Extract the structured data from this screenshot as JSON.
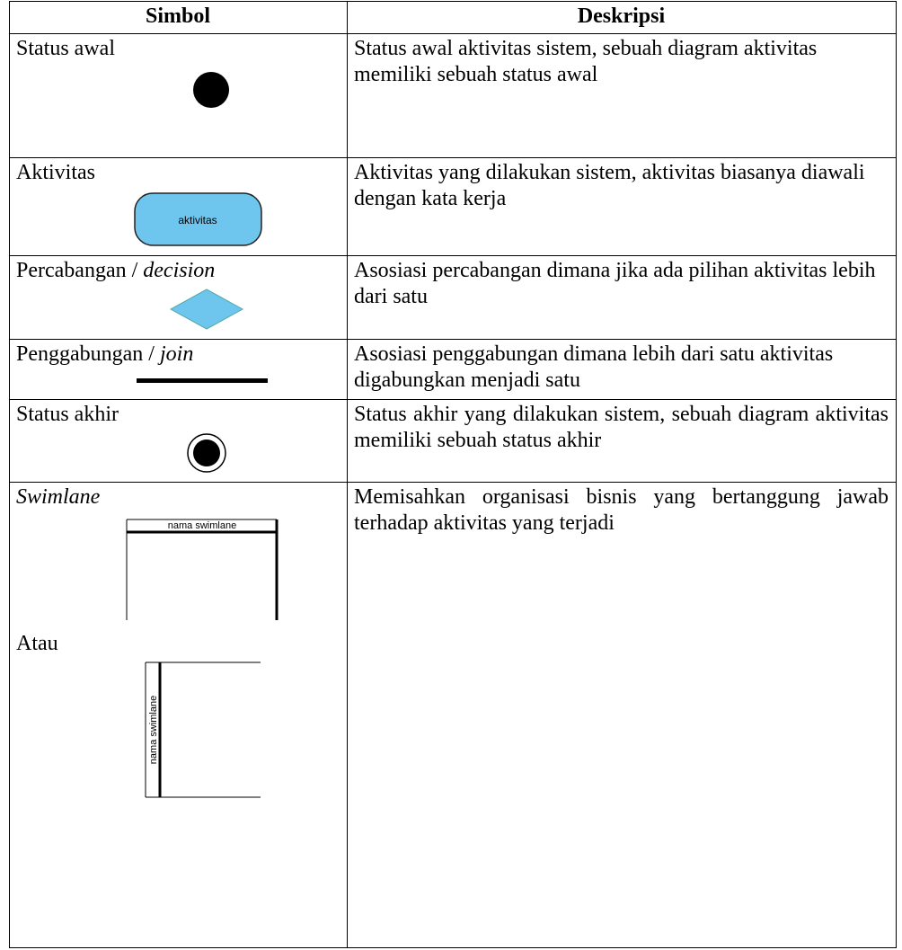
{
  "table": {
    "header": [
      "Simbol",
      "Deskripsi"
    ],
    "rows": [
      {
        "symbol": [
          "Status awal"
        ],
        "description": "Status awal aktivitas sistem, sebuah diagram aktivitas memiliki sebuah status awal"
      },
      {
        "symbol": [
          "Aktivitas"
        ],
        "shape_label": "aktivitas",
        "description": "Aktivitas yang dilakukan sistem, aktivitas biasanya diawali dengan kata kerja"
      },
      {
        "symbol": [
          "Percabangan / ",
          "decision"
        ],
        "description": "Asosiasi percabangan dimana jika ada pilihan aktivitas lebih dari satu"
      },
      {
        "symbol": [
          "Penggabungan / ",
          "join"
        ],
        "description": "Asosiasi penggabungan dimana lebih dari satu aktivitas digabungkan menjadi satu"
      },
      {
        "symbol": [
          "Status akhir"
        ],
        "description": "Status akhir yang dilakukan sistem, sebuah diagram aktivitas memiliki sebuah status akhir"
      },
      {
        "symbol": [
          "Swimlane"
        ],
        "shape_label": "nama swimlane",
        "alt": "Atau",
        "alt_shape_label": "nama swimlane",
        "description": "Memisahkan organisasi bisnis yang bertanggung jawab terhadap aktivitas yang terjadi"
      }
    ]
  }
}
